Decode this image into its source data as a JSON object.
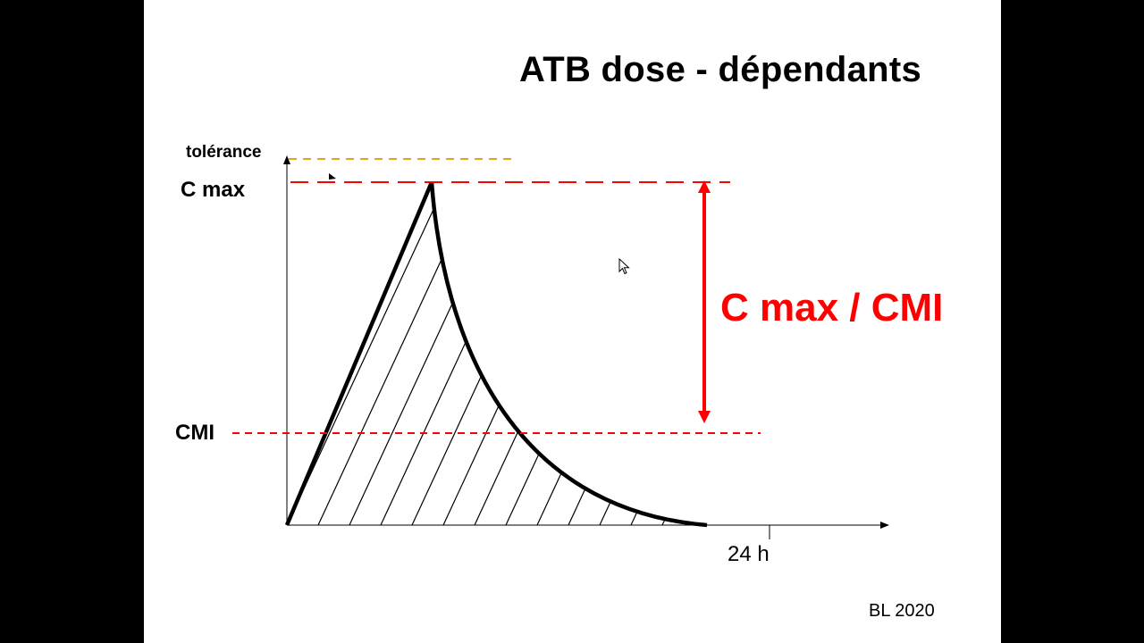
{
  "slide": {
    "title": "ATB dose - dépendants",
    "footer": "BL 2020"
  },
  "diagram": {
    "labels": {
      "tolerance": "tolérance",
      "cmax": "C max",
      "cmi": "CMI",
      "time": "24 h"
    },
    "ratio_label": "C max / CMI",
    "colors": {
      "tolerance_line": "#e8a317",
      "cmax_line": "#ff0000",
      "cmi_line": "#ff0000",
      "ratio_arrow": "#ff0000",
      "curve": "#000000"
    }
  }
}
